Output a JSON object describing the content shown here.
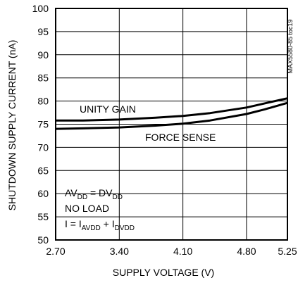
{
  "chart_data": {
    "type": "line",
    "title": "",
    "xlabel": "SUPPLY VOLTAGE (V)",
    "ylabel": "SHUTDOWN SUPPLY CURRENT (nA)",
    "xlim": [
      2.7,
      5.25
    ],
    "ylim": [
      50,
      100
    ],
    "x_ticks": [
      "2.70",
      "3.40",
      "4.10",
      "4.80",
      "5.25"
    ],
    "x_tick_values": [
      2.7,
      3.4,
      4.1,
      4.8,
      5.25
    ],
    "y_ticks": [
      "50",
      "55",
      "60",
      "65",
      "70",
      "75",
      "80",
      "85",
      "90",
      "95",
      "100"
    ],
    "y_tick_values": [
      50,
      55,
      60,
      65,
      70,
      75,
      80,
      85,
      90,
      95,
      100
    ],
    "grid": true,
    "series": [
      {
        "name": "UNITY GAIN",
        "x": [
          2.7,
          3.0,
          3.4,
          3.8,
          4.1,
          4.4,
          4.8,
          5.0,
          5.25
        ],
        "y": [
          75.8,
          75.8,
          76.0,
          76.4,
          76.8,
          77.4,
          78.6,
          79.5,
          80.6
        ]
      },
      {
        "name": "FORCE SENSE",
        "x": [
          2.7,
          3.0,
          3.4,
          3.8,
          4.1,
          4.4,
          4.8,
          5.0,
          5.25
        ],
        "y": [
          74.0,
          74.1,
          74.3,
          74.7,
          75.1,
          75.8,
          77.2,
          78.2,
          79.6
        ]
      }
    ],
    "annotations": {
      "code": "MAX5580-85 toc19",
      "cond1_main": "AV",
      "cond1_sub": "DD",
      "cond1_eq": " = DV",
      "cond1_sub2": "DD",
      "cond2": "NO LOAD",
      "cond3_main": "I = I",
      "cond3_sub": "AVDD",
      "cond3_plus": " + I",
      "cond3_sub2": "DVDD"
    }
  }
}
